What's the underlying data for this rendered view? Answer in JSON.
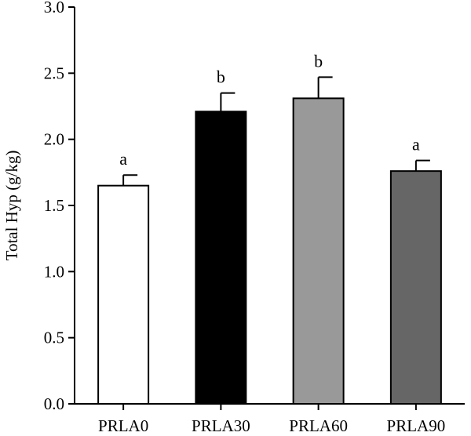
{
  "chart_data": {
    "type": "bar",
    "title": "",
    "xlabel": "",
    "ylabel": "Total Hyp (g/kg)",
    "ylim": [
      0,
      3.0
    ],
    "yticks": [
      "0.0",
      "0.5",
      "1.0",
      "1.5",
      "2.0",
      "2.5",
      "3.0"
    ],
    "categories": [
      "PRLA0",
      "PRLA30",
      "PRLA60",
      "PRLA90"
    ],
    "values": [
      1.65,
      2.21,
      2.31,
      1.76
    ],
    "errors": [
      0.08,
      0.14,
      0.16,
      0.08
    ],
    "significance": [
      "a",
      "b",
      "b",
      "a"
    ],
    "colors": [
      "#ffffff",
      "#000000",
      "#999999",
      "#666666"
    ],
    "grid": false,
    "legend": "none"
  }
}
